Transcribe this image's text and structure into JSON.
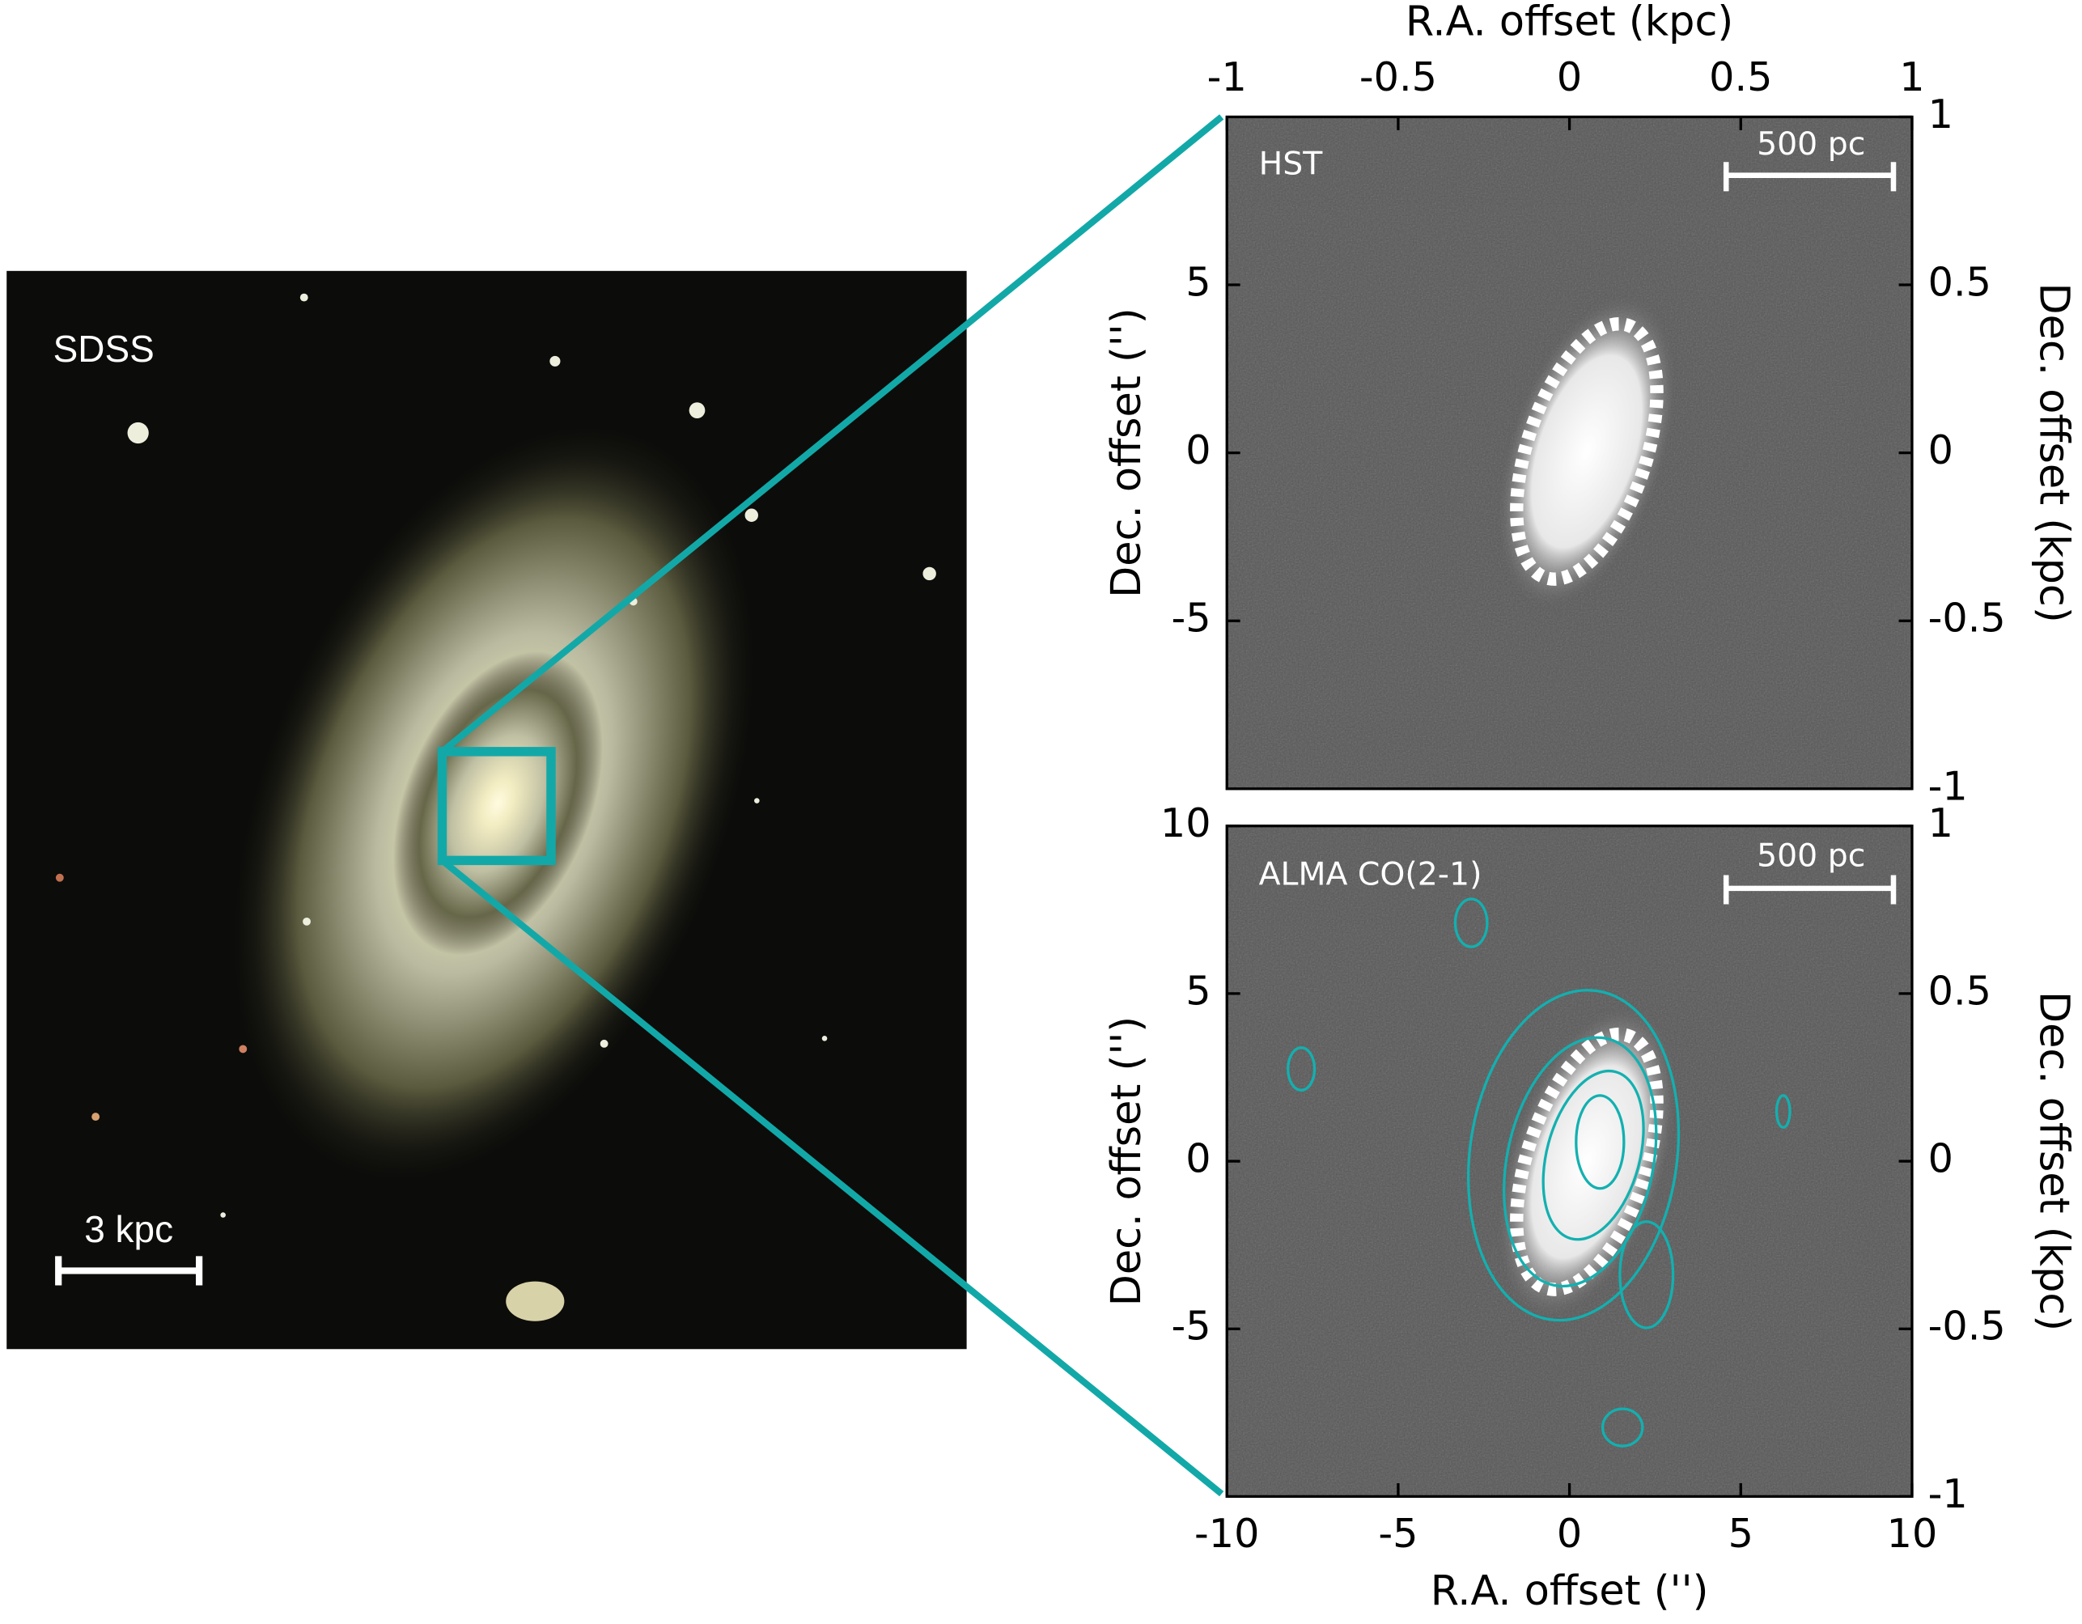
{
  "figure": {
    "label": "SDSS",
    "scale_bar": "3 kpc"
  },
  "chart_data": [
    {
      "type": "image",
      "label": "HST",
      "scale_bar": "500 pc",
      "x2lim": [
        -1,
        1
      ],
      "x2ticks": [
        -1,
        -0.5,
        0,
        0.5,
        1
      ],
      "x2label": "R.A. offset (kpc)",
      "ylim": [
        -10,
        10
      ],
      "yticks": [
        -5,
        0,
        5
      ],
      "ylabel": "Dec. offset ('')",
      "y2lim": [
        -1,
        1
      ],
      "y2ticks": [
        -1,
        -0.5,
        0,
        0.5,
        1
      ],
      "y2label": "Dec. offset (kpc)"
    },
    {
      "type": "image",
      "label": "ALMA CO(2-1)",
      "scale_bar": "500 pc",
      "xlim": [
        -10,
        10
      ],
      "xticks": [
        -10,
        -5,
        0,
        5,
        10
      ],
      "xlabel": "R.A. offset ('')",
      "ylim": [
        -10,
        10
      ],
      "yticks": [
        -5,
        0,
        5,
        10
      ],
      "ylabel": "Dec. offset ('')",
      "y2lim": [
        -1,
        1
      ],
      "y2ticks": [
        -1,
        -0.5,
        0,
        0.5,
        1
      ],
      "y2label": "Dec. offset (kpc)"
    }
  ]
}
